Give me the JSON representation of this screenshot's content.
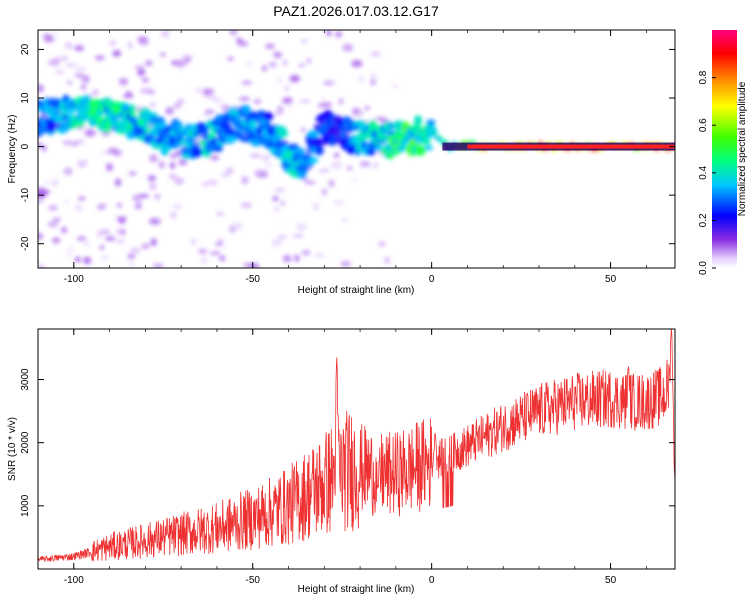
{
  "title": "PAZ1.2026.017.03.12.G17",
  "chart_data": [
    {
      "type": "heatmap",
      "title": "PAZ1.2026.017.03.12.G17",
      "xlabel": "Height of straight line (km)",
      "ylabel": "Frequency (Hz)",
      "xlim": [
        -110,
        68
      ],
      "ylim": [
        -25,
        24
      ],
      "xticks": [
        -100,
        -50,
        0,
        50
      ],
      "xtick_labels": [
        "-100",
        "-50",
        "0",
        "50"
      ],
      "yticks": [
        20,
        10,
        0,
        -10,
        -20
      ],
      "ytick_labels": [
        "20",
        "10",
        "0",
        "-10",
        "-20"
      ],
      "colorbar": {
        "label": "Normalized spectral amplitude",
        "range": [
          0,
          1
        ],
        "ticks": [
          0.0,
          0.2,
          0.4,
          0.6,
          0.8
        ],
        "tick_labels": [
          "0.0",
          "0.2",
          "0.4",
          "0.6",
          "0.8"
        ],
        "colormap": "rainbow"
      },
      "ridge": {
        "x": [
          -108,
          -100,
          -90,
          -80,
          -70,
          -62,
          -55,
          -45,
          -40,
          -35,
          -30,
          -25,
          -20,
          -15,
          -10,
          -5,
          0,
          3,
          5,
          10,
          15,
          20,
          30,
          40,
          50,
          60,
          68
        ],
        "freq": [
          6,
          7,
          6.5,
          4,
          1,
          1.5,
          5,
          3,
          -2,
          -3,
          4,
          3,
          2,
          1.5,
          1,
          2,
          3,
          1,
          0,
          0.5,
          0,
          0,
          0,
          0,
          0,
          0,
          0
        ],
        "amplitude": [
          0.35,
          0.45,
          0.5,
          0.45,
          0.4,
          0.45,
          0.4,
          0.35,
          0.45,
          0.4,
          0.3,
          0.3,
          0.4,
          0.45,
          0.55,
          0.6,
          0.5,
          0.45,
          0.5,
          0.65,
          0.85,
          0.9,
          0.95,
          0.95,
          0.95,
          0.95,
          0.95
        ]
      }
    },
    {
      "type": "line",
      "xlabel": "Height of straight line (km)",
      "ylabel": "SNR (10 * v/v)",
      "xlim": [
        -110,
        68
      ],
      "ylim": [
        0,
        3800
      ],
      "xticks": [
        -100,
        -50,
        0,
        50
      ],
      "xtick_labels": [
        "-100",
        "-50",
        "0",
        "50"
      ],
      "yticks": [
        1000,
        2000,
        3000
      ],
      "ytick_labels": [
        "1000",
        "2000",
        "3000"
      ],
      "color": "#ee3030",
      "series": [
        {
          "name": "SNR",
          "x": [
            -110,
            -100,
            -90,
            -80,
            -70,
            -60,
            -50,
            -40,
            -30,
            -25,
            -20,
            -15,
            -10,
            -5,
            0,
            5,
            10,
            20,
            30,
            40,
            50,
            55,
            60,
            65,
            67,
            68
          ],
          "envelope": [
            150,
            200,
            350,
            450,
            550,
            650,
            800,
            1000,
            1350,
            1550,
            1600,
            1500,
            1500,
            1600,
            1700,
            1800,
            1950,
            2250,
            2500,
            2650,
            2700,
            2650,
            2650,
            2750,
            3000,
            1500
          ],
          "spikes": [
            {
              "x": -26.5,
              "y": 3350
            },
            {
              "x": -15,
              "y": 1300
            },
            {
              "x": 1,
              "y": 2150
            },
            {
              "x": 55,
              "y": 3200
            },
            {
              "x": 67,
              "y": 3800
            }
          ]
        }
      ]
    }
  ]
}
